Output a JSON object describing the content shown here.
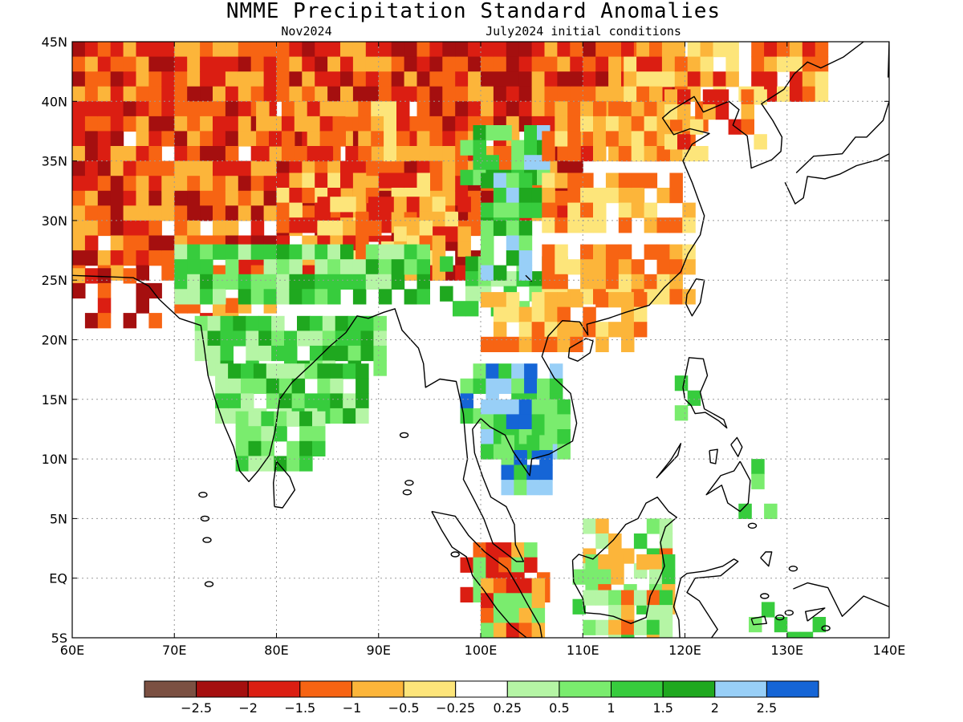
{
  "map": {
    "title": "NMME Precipitation Standard Anomalies",
    "subtitle_left": "Nov2024",
    "subtitle_right": "July2024 initial conditions",
    "lon_range": [
      60,
      140
    ],
    "lat_range": [
      -5,
      45
    ],
    "lon_ticks": [
      {
        "value": 60,
        "label": "60E"
      },
      {
        "value": 70,
        "label": "70E"
      },
      {
        "value": 80,
        "label": "80E"
      },
      {
        "value": 90,
        "label": "90E"
      },
      {
        "value": 100,
        "label": "100E"
      },
      {
        "value": 110,
        "label": "110E"
      },
      {
        "value": 120,
        "label": "120E"
      },
      {
        "value": 130,
        "label": "130E"
      },
      {
        "value": 140,
        "label": "140E"
      }
    ],
    "lat_ticks": [
      {
        "value": 45,
        "label": "45N"
      },
      {
        "value": 40,
        "label": "40N"
      },
      {
        "value": 35,
        "label": "35N"
      },
      {
        "value": 30,
        "label": "30N"
      },
      {
        "value": 25,
        "label": "25N"
      },
      {
        "value": 20,
        "label": "20N"
      },
      {
        "value": 15,
        "label": "15N"
      },
      {
        "value": 10,
        "label": "10N"
      },
      {
        "value": 5,
        "label": "5N"
      },
      {
        "value": 0,
        "label": "EQ"
      },
      {
        "value": -5,
        "label": "5S"
      }
    ],
    "grid": true
  },
  "colorbar": {
    "colors": [
      "#7b5042",
      "#a50f0f",
      "#db1e12",
      "#f76413",
      "#fcb53a",
      "#fde57a",
      "#ffffff",
      "#b5f5a5",
      "#7aec6e",
      "#37cc3d",
      "#1fa81f",
      "#98cff7",
      "#1565d6"
    ],
    "labels": [
      "−2.5",
      "−2",
      "−1.5",
      "−1",
      "−0.5",
      "−0.25",
      "0.25",
      "0.5",
      "1",
      "1.5",
      "2",
      "2.5"
    ]
  },
  "anomaly_regions": [
    {
      "name": "central-asia",
      "colors": [
        "#f76413",
        "#db1e12",
        "#a50f0f",
        "#fcb53a"
      ],
      "cells": [
        [
          60,
          45,
          60,
          100
        ],
        [
          60,
          40,
          60,
          95
        ],
        [
          60,
          35,
          50,
          100
        ],
        [
          60,
          30,
          40,
          75
        ],
        [
          60,
          26,
          20,
          45
        ]
      ]
    },
    {
      "name": "tibet-nw-china",
      "colors": [
        "#fcb53a",
        "#fde57a",
        "#f76413",
        "#db1e12"
      ],
      "cells": [
        [
          78,
          40,
          14,
          84
        ],
        [
          80,
          34,
          14,
          92
        ],
        [
          84,
          32,
          14,
          68
        ],
        [
          84,
          30,
          12,
          60
        ]
      ]
    },
    {
      "name": "india",
      "colors": [
        "#37cc3d",
        "#7aec6e",
        "#1fa81f",
        "#b5f5a5"
      ],
      "cells": [
        [
          70,
          28,
          24,
          80
        ],
        [
          72,
          22,
          18,
          88
        ],
        [
          74,
          18,
          14,
          90
        ],
        [
          76,
          14,
          8,
          94
        ],
        [
          96,
          27,
          12,
          70
        ]
      ]
    },
    {
      "name": "indochina",
      "colors": [
        "#98cff7",
        "#1565d6",
        "#37cc3d",
        "#7aec6e"
      ],
      "cells": [
        [
          98,
          18,
          10,
          90
        ],
        [
          100,
          15,
          8,
          92
        ],
        [
          102,
          12,
          4,
          94
        ]
      ]
    },
    {
      "name": "west-china",
      "colors": [
        "#37cc3d",
        "#7aec6e",
        "#98cff7",
        "#1fa81f"
      ],
      "cells": [
        [
          98,
          38,
          8,
          80
        ],
        [
          100,
          34,
          6,
          85
        ],
        [
          100,
          30,
          5,
          80
        ]
      ]
    },
    {
      "name": "east-china",
      "colors": [
        "#fcb53a",
        "#fde57a",
        "#f76413"
      ],
      "cells": [
        [
          106,
          40,
          16,
          70
        ],
        [
          106,
          34,
          16,
          82
        ],
        [
          106,
          28,
          14,
          84
        ],
        [
          100,
          24,
          16,
          72
        ]
      ]
    },
    {
      "name": "mongolia-korea",
      "colors": [
        "#fcb53a",
        "#f76413",
        "#db1e12",
        "#fde57a"
      ],
      "cells": [
        [
          114,
          45,
          20,
          80
        ],
        [
          118,
          41,
          10,
          60
        ]
      ]
    },
    {
      "name": "sumatra",
      "colors": [
        "#db1e12",
        "#f76413",
        "#fcb53a",
        "#7aec6e"
      ],
      "cells": [
        [
          98,
          3,
          8,
          80
        ],
        [
          100,
          0,
          6,
          85
        ]
      ]
    },
    {
      "name": "borneo",
      "colors": [
        "#fcb53a",
        "#f76413",
        "#7aec6e",
        "#37cc3d",
        "#b5f5a5"
      ],
      "cells": [
        [
          110,
          5,
          8,
          70
        ],
        [
          109,
          2,
          10,
          75
        ],
        [
          110,
          -1,
          8,
          70
        ]
      ]
    },
    {
      "name": "maritime-islands",
      "colors": [
        "#37cc3d",
        "#7aec6e"
      ],
      "cells": [
        [
          119,
          17,
          2,
          30
        ],
        [
          124,
          10,
          4,
          20
        ],
        [
          125,
          -2,
          8,
          25
        ]
      ]
    }
  ]
}
